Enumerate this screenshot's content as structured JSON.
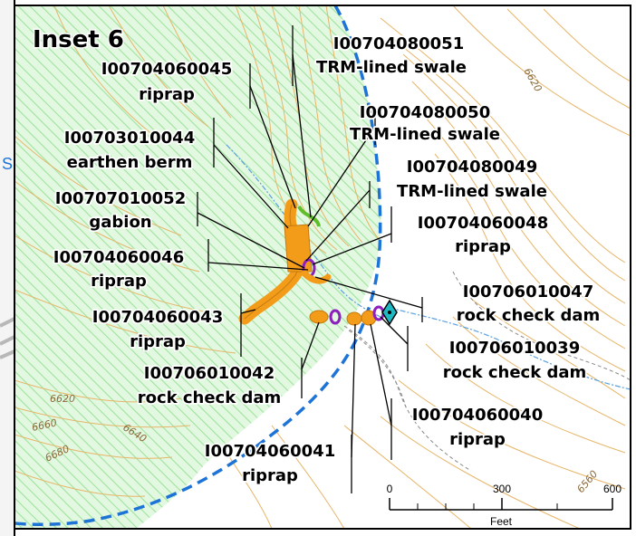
{
  "title": "Inset 6",
  "colors": {
    "green_hatch": "#9fe39f",
    "green_bg": "#d8f6d6",
    "contour": "#e6b568",
    "boundary": "#1e73d6",
    "feature_orange": "#f39c1a",
    "feature_purple": "#8e1fbf",
    "feature_green": "#5fbf2a",
    "diamond": "#1fb9c2"
  },
  "contour_labels": [
    "6620",
    "6620",
    "6660",
    "6640",
    "6680",
    "6560"
  ],
  "features": [
    {
      "id": "I00704080051",
      "type": "TRM-lined swale"
    },
    {
      "id": "I00704060045",
      "type": "riprap"
    },
    {
      "id": "I00704080050",
      "type": "TRM-lined swale"
    },
    {
      "id": "I00703010044",
      "type": "earthen berm"
    },
    {
      "id": "I00704080049",
      "type": "TRM-lined swale"
    },
    {
      "id": "I00707010052",
      "type": "gabion"
    },
    {
      "id": "I00704060048",
      "type": "riprap"
    },
    {
      "id": "I00704060046",
      "type": "riprap"
    },
    {
      "id": "I00706010047",
      "type": "rock check dam"
    },
    {
      "id": "I00704060043",
      "type": "riprap"
    },
    {
      "id": "I00706010039",
      "type": "rock check dam"
    },
    {
      "id": "I00706010042",
      "type": "rock check dam"
    },
    {
      "id": "I00704060040",
      "type": "riprap"
    },
    {
      "id": "I00704060041",
      "type": "riprap"
    }
  ],
  "scale_bar": {
    "ticks": [
      "0",
      "300",
      "600"
    ],
    "unit": "Feet"
  },
  "edge_fragment": "S"
}
